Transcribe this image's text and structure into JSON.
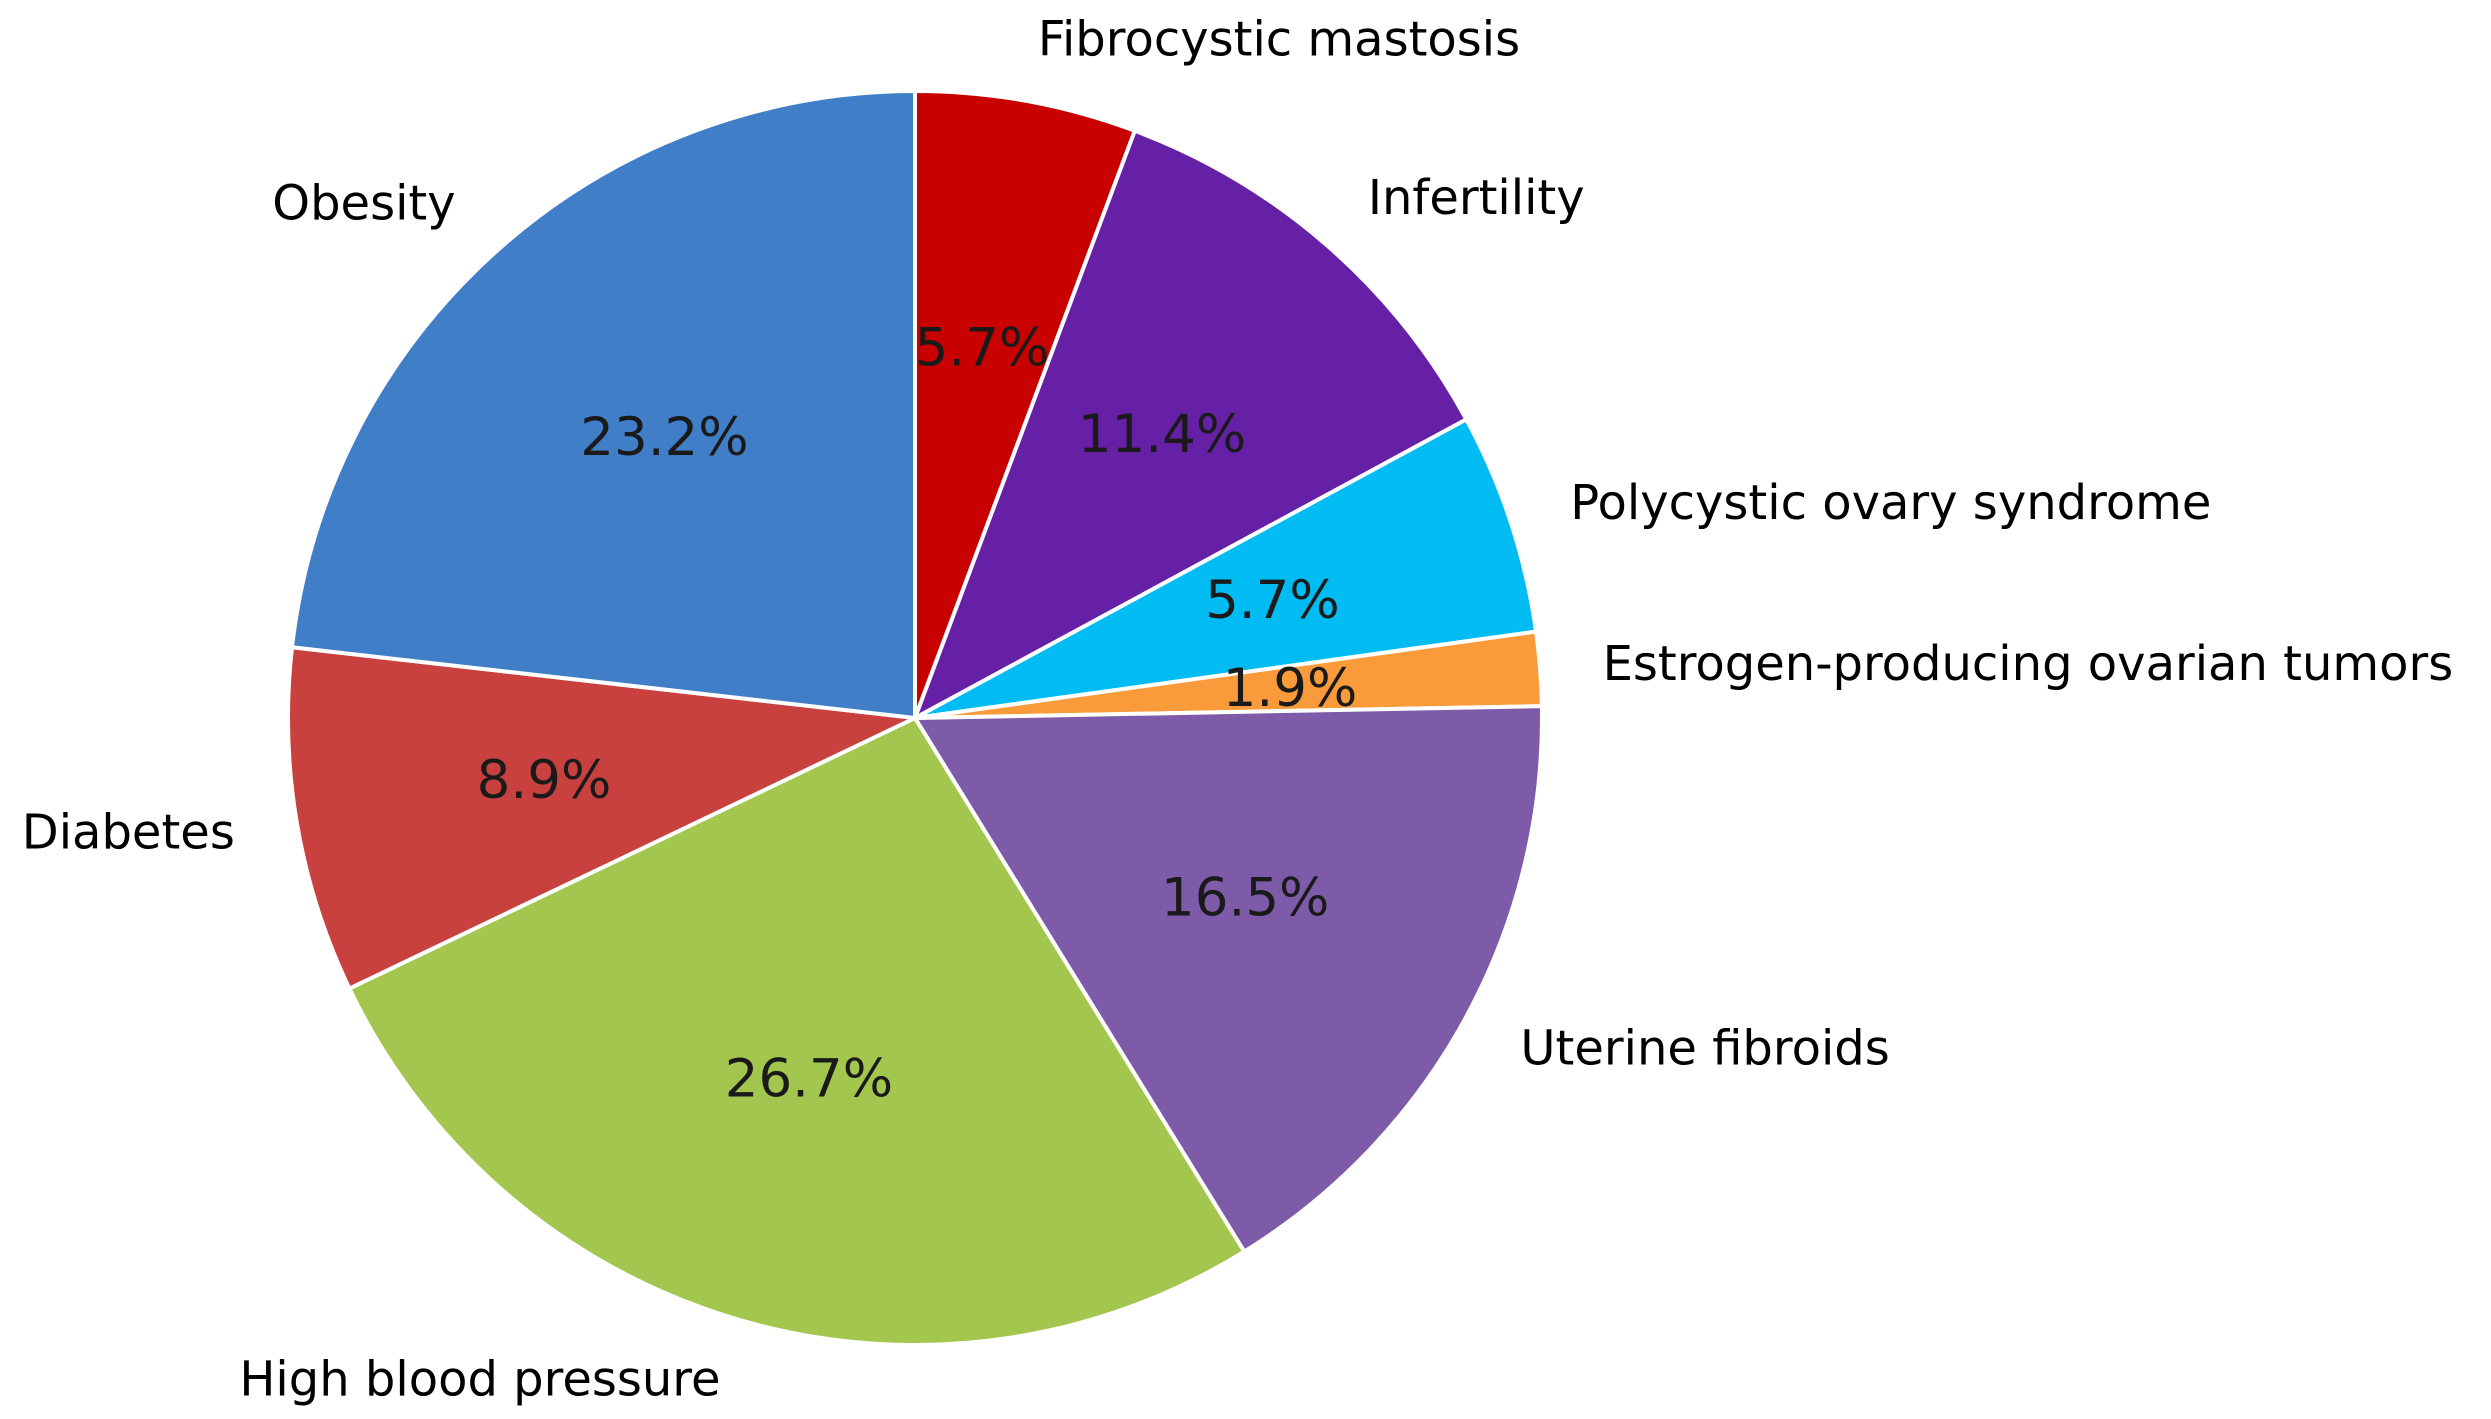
{
  "chart_data": {
    "type": "pie",
    "start_angle_deg": 90,
    "direction": "clockwise",
    "slices": [
      {
        "label": "Fibrocystic mastosis",
        "value": 5.7,
        "pct_label": "5.7%",
        "color": "#C90000"
      },
      {
        "label": "Infertility",
        "value": 11.4,
        "pct_label": "11.4%",
        "color": "#6620A6"
      },
      {
        "label": "Polycystic ovary syndrome",
        "value": 5.7,
        "pct_label": "5.7%",
        "color": "#00BCF2"
      },
      {
        "label": "Estrogen-producing ovarian tumors",
        "value": 1.9,
        "pct_label": "1.9%",
        "color": "#F99B3A"
      },
      {
        "label": "Uterine fibroids",
        "value": 16.5,
        "pct_label": "16.5%",
        "color": "#7E5BA8"
      },
      {
        "label": "High blood pressure",
        "value": 26.7,
        "pct_label": "26.7%",
        "color": "#A3C64E"
      },
      {
        "label": "Diabetes",
        "value": 8.9,
        "pct_label": "8.9%",
        "color": "#C9413E"
      },
      {
        "label": "Obesity",
        "value": 23.2,
        "pct_label": "23.2%",
        "color": "#407FC8"
      }
    ]
  }
}
